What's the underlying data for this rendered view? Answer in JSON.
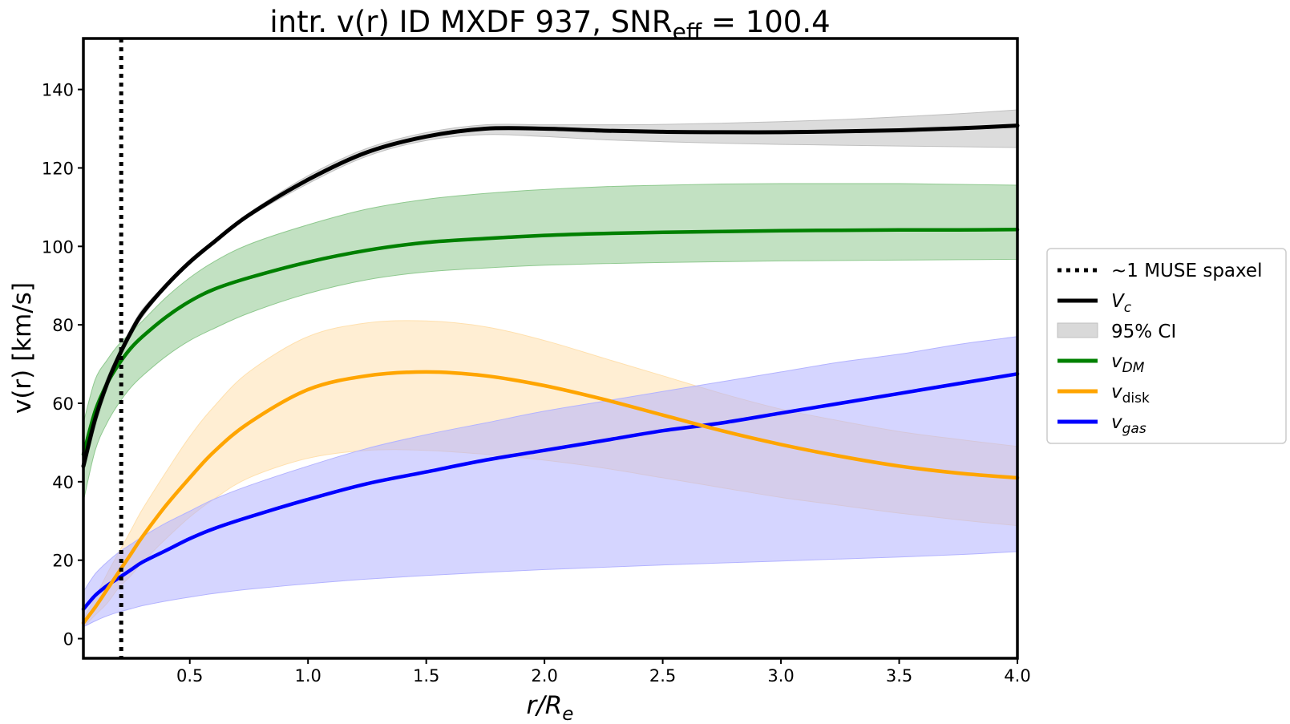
{
  "chart_data": {
    "type": "line",
    "title": "intr. v(r) ID MXDF 937, SNR",
    "title_subscript": "eff",
    "title_suffix": " = 100.4",
    "xlabel_main": "r/R",
    "xlabel_sub": "e",
    "ylabel": "v(r) [km/s]",
    "xlim": [
      0.05,
      4.0
    ],
    "ylim": [
      -5,
      153
    ],
    "xticks": [
      0.5,
      1.0,
      1.5,
      2.0,
      2.5,
      3.0,
      3.5,
      4.0
    ],
    "xtick_labels": [
      "0.5",
      "1.0",
      "1.5",
      "2.0",
      "2.5",
      "3.0",
      "3.5",
      "4.0"
    ],
    "yticks": [
      0,
      20,
      40,
      60,
      80,
      100,
      120,
      140
    ],
    "ytick_labels": [
      "0",
      "20",
      "40",
      "60",
      "80",
      "100",
      "120",
      "140"
    ],
    "muse_spaxel_x": 0.21,
    "x": [
      0.05,
      0.1,
      0.15,
      0.2,
      0.25,
      0.3,
      0.4,
      0.5,
      0.6,
      0.75,
      1.0,
      1.25,
      1.5,
      1.75,
      2.0,
      2.25,
      2.5,
      2.75,
      3.0,
      3.25,
      3.5,
      3.75,
      4.0
    ],
    "series": [
      {
        "name": "V_c",
        "color": "#000000",
        "values": [
          44,
          56,
          65,
          72,
          78,
          83,
          90,
          96,
          101,
          108,
          117,
          124,
          128,
          130,
          130,
          129.5,
          129.2,
          129.1,
          129.1,
          129.3,
          129.6,
          130.1,
          130.8
        ],
        "lower": [
          42,
          54,
          63.5,
          71,
          77,
          82,
          89.5,
          95.5,
          100.5,
          107.5,
          116,
          123,
          127,
          128.5,
          128,
          127.2,
          126.7,
          126.3,
          126,
          125.8,
          125.6,
          125.4,
          125.2
        ],
        "upper": [
          46,
          58,
          66.5,
          73,
          79,
          84,
          90.5,
          96.5,
          101.5,
          108.5,
          118,
          125,
          129,
          131,
          131,
          131,
          131.1,
          131.4,
          131.8,
          132.3,
          133,
          133.8,
          134.8
        ],
        "band_color": "#bfbfbf"
      },
      {
        "name": "v_DM",
        "color": "#008000",
        "values": [
          47,
          58,
          65,
          70,
          74,
          77,
          82,
          86,
          89,
          92,
          96,
          99,
          101,
          102,
          102.8,
          103.3,
          103.6,
          103.8,
          104,
          104.1,
          104.2,
          104.2,
          104.3
        ],
        "lower": [
          35,
          48,
          55,
          60,
          64,
          67,
          72,
          76,
          79,
          83,
          88,
          91.5,
          93.5,
          94.5,
          95.2,
          95.6,
          95.9,
          96.1,
          96.3,
          96.4,
          96.5,
          96.6,
          96.7
        ],
        "upper": [
          55,
          66,
          71,
          75,
          78,
          81,
          87,
          92,
          96,
          100.5,
          105.5,
          109.5,
          112,
          113.5,
          114.5,
          115.2,
          115.6,
          115.9,
          116,
          116,
          116,
          115.8,
          115.6
        ],
        "band_color": "#8fc98f"
      },
      {
        "name": "v_disk",
        "color": "#ffa500",
        "values": [
          4,
          8,
          12.5,
          17,
          21.5,
          26,
          34,
          41,
          47.5,
          55,
          63.5,
          67,
          68,
          67,
          64.5,
          61,
          57,
          53,
          49.5,
          46.5,
          44,
          42.2,
          41
        ],
        "lower": [
          3,
          6,
          9,
          13,
          16,
          19.5,
          25.5,
          31,
          35.5,
          41,
          46,
          48,
          48,
          47,
          45.5,
          43.5,
          41,
          38.5,
          36,
          34,
          32,
          30.3,
          28.8
        ],
        "upper": [
          5,
          10.5,
          16.5,
          22,
          27.5,
          33,
          42.5,
          51.5,
          59,
          68,
          77,
          80.5,
          81,
          79.5,
          76,
          71.5,
          67,
          62.5,
          58.5,
          55.5,
          52.8,
          50.8,
          49
        ],
        "band_color": "#ffe0ae"
      },
      {
        "name": "v_gas",
        "color": "#0000ff",
        "values": [
          7.5,
          11,
          13.5,
          15.5,
          17.5,
          19.5,
          22.5,
          25.5,
          28,
          31,
          35.5,
          39.5,
          42.5,
          45.5,
          48,
          50.5,
          53,
          55,
          57.5,
          60,
          62.5,
          65,
          67.5
        ],
        "lower": [
          3,
          4.5,
          5.8,
          6.8,
          7.6,
          8.4,
          9.6,
          10.6,
          11.5,
          12.6,
          14,
          15.2,
          16.1,
          16.9,
          17.6,
          18.2,
          18.8,
          19.3,
          19.8,
          20.3,
          20.8,
          21.4,
          22.2
        ],
        "upper": [
          12,
          16.5,
          19.5,
          22,
          24,
          26,
          29.5,
          32.5,
          35.5,
          39,
          44,
          48.5,
          52,
          55,
          58,
          60.5,
          63,
          65.5,
          68,
          70.5,
          72.5,
          75,
          77
        ],
        "band_color": "#b3b3ff"
      }
    ],
    "legend": {
      "placement": "center-right outside",
      "entries": [
        {
          "label": "~1 MUSE spaxel",
          "label_sub": ""
        },
        {
          "label": "V",
          "label_sub": "c"
        },
        {
          "label": "95% CI",
          "label_sub": ""
        },
        {
          "label": "v",
          "label_sub": "DM"
        },
        {
          "label": "v",
          "label_sub": "disk"
        },
        {
          "label": "v",
          "label_sub": "gas"
        }
      ]
    }
  }
}
